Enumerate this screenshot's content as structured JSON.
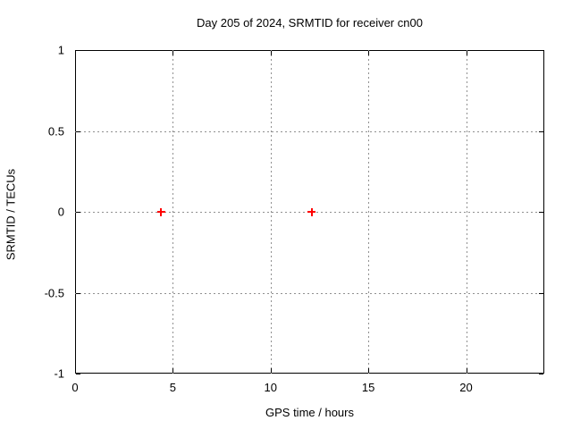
{
  "title": "Day 205 of 2024, SRMTID for receiver cn00",
  "colors": {
    "background": "#ffffff",
    "axis": "#000000",
    "grid": "#909090",
    "text": "#000000",
    "marker": "#ff0000"
  },
  "chart_data": {
    "type": "scatter",
    "title": "Day 205 of 2024, SRMTID for receiver cn00",
    "xlabel": "GPS time / hours",
    "ylabel": "SRMTID / TECUs",
    "xlim": [
      0,
      24
    ],
    "ylim": [
      -1,
      1
    ],
    "xticks": [
      0,
      5,
      10,
      15,
      20
    ],
    "yticks": [
      1,
      0.5,
      0,
      -0.5,
      -1
    ],
    "grid": true,
    "legend": false,
    "series": [
      {
        "name": "SRMTID",
        "marker": "plus",
        "color": "#ff0000",
        "points": [
          {
            "x": 4.4,
            "y": 0
          },
          {
            "x": 12.1,
            "y": 0
          }
        ]
      }
    ]
  }
}
